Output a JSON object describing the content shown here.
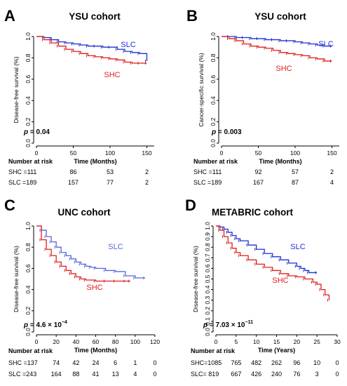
{
  "chart_data": [
    {
      "type": "line",
      "subtype": "kaplan-meier",
      "letter": "A",
      "title": "YSU cohort",
      "xlabel": "Time (Months)",
      "ylabel": "Disease-free survival (%)",
      "xlim": [
        0,
        160
      ],
      "ylim": [
        0,
        1.0
      ],
      "xticks": [
        "0",
        "50",
        "100",
        "150"
      ],
      "yticks": [
        "0.0",
        "0.2",
        "0.4",
        "0.6",
        "0.8",
        "1.0"
      ],
      "annotation": "p = 0.04",
      "series": [
        {
          "name": "SLC",
          "color": "#1f2fd6",
          "x": [
            0,
            10,
            20,
            30,
            40,
            50,
            60,
            70,
            80,
            90,
            100,
            110,
            120,
            130,
            140,
            150
          ],
          "y": [
            1.0,
            0.99,
            0.97,
            0.95,
            0.94,
            0.93,
            0.92,
            0.91,
            0.91,
            0.9,
            0.9,
            0.88,
            0.86,
            0.85,
            0.84,
            0.77
          ]
        },
        {
          "name": "SHC",
          "color": "#e01e1e",
          "x": [
            0,
            10,
            20,
            30,
            40,
            50,
            60,
            70,
            80,
            90,
            100,
            110,
            120,
            130,
            140,
            150
          ],
          "y": [
            1.0,
            0.97,
            0.94,
            0.91,
            0.88,
            0.86,
            0.84,
            0.82,
            0.81,
            0.8,
            0.79,
            0.78,
            0.76,
            0.75,
            0.75,
            0.75
          ]
        }
      ],
      "risk_table": {
        "header": "Number at risk",
        "rows": [
          {
            "label": "SHC =111",
            "values": [
              "86",
              "53",
              "2"
            ]
          },
          {
            "label": "SLC =189",
            "values": [
              "157",
              "77",
              "2"
            ]
          }
        ]
      }
    },
    {
      "type": "line",
      "subtype": "kaplan-meier",
      "letter": "B",
      "title": "YSU cohort",
      "xlabel": "Time (Months)",
      "ylabel": "Cancer-specific survival (%)",
      "xlim": [
        0,
        160
      ],
      "ylim": [
        0,
        1.0
      ],
      "xticks": [
        "0",
        "50",
        "100",
        "150"
      ],
      "yticks": [
        "0.0",
        "0.2",
        "0.4",
        "0.6",
        "0.8",
        "1.0"
      ],
      "annotation": "p = 0.003",
      "series": [
        {
          "name": "SLC",
          "color": "#1f2fd6",
          "x": [
            0,
            10,
            20,
            30,
            40,
            50,
            60,
            70,
            80,
            90,
            100,
            110,
            120,
            130,
            140,
            150
          ],
          "y": [
            1.0,
            1.0,
            0.99,
            0.99,
            0.98,
            0.98,
            0.97,
            0.97,
            0.96,
            0.96,
            0.95,
            0.94,
            0.93,
            0.92,
            0.91,
            0.91
          ]
        },
        {
          "name": "SHC",
          "color": "#e01e1e",
          "x": [
            0,
            10,
            20,
            30,
            40,
            50,
            60,
            70,
            80,
            90,
            100,
            110,
            120,
            130,
            140,
            150
          ],
          "y": [
            1.0,
            0.98,
            0.96,
            0.93,
            0.91,
            0.9,
            0.89,
            0.87,
            0.85,
            0.84,
            0.83,
            0.82,
            0.8,
            0.79,
            0.77,
            0.77
          ]
        }
      ],
      "risk_table": {
        "header": "Number at risk",
        "rows": [
          {
            "label": "SHC =111",
            "values": [
              "92",
              "57",
              "2"
            ]
          },
          {
            "label": "SLC =189",
            "values": [
              "167",
              "87",
              "4"
            ]
          }
        ]
      }
    },
    {
      "type": "line",
      "subtype": "kaplan-meier",
      "letter": "C",
      "title": "UNC cohort",
      "xlabel": "Time (Months)",
      "ylabel": "Disease-free survival (%)",
      "xlim": [
        0,
        120
      ],
      "ylim": [
        0,
        1.0
      ],
      "xticks": [
        "0",
        "20",
        "40",
        "60",
        "80",
        "100",
        "120"
      ],
      "yticks": [
        "0.0",
        "0.2",
        "0.4",
        "0.6",
        "0.8",
        "1.0"
      ],
      "annotation": "p = 4.6 × 10",
      "annotation_exp": "−4",
      "series": [
        {
          "name": "SLC",
          "color": "#5566dd",
          "x": [
            0,
            5,
            10,
            15,
            20,
            25,
            30,
            35,
            40,
            45,
            50,
            55,
            60,
            70,
            80,
            90,
            100,
            110
          ],
          "y": [
            1.0,
            0.96,
            0.9,
            0.85,
            0.8,
            0.75,
            0.72,
            0.69,
            0.66,
            0.64,
            0.62,
            0.61,
            0.6,
            0.58,
            0.57,
            0.53,
            0.51,
            0.51
          ]
        },
        {
          "name": "SHC",
          "color": "#e01e1e",
          "x": [
            0,
            5,
            10,
            15,
            20,
            25,
            30,
            35,
            40,
            45,
            50,
            60,
            70,
            80,
            90,
            95
          ],
          "y": [
            1.0,
            0.87,
            0.78,
            0.72,
            0.66,
            0.62,
            0.58,
            0.55,
            0.52,
            0.5,
            0.49,
            0.48,
            0.48,
            0.48,
            0.48,
            0.48
          ]
        }
      ],
      "risk_table": {
        "header": "Number at risk",
        "rows": [
          {
            "label": "SHC =137",
            "values": [
              "74",
              "42",
              "24",
              "6",
              "1",
              "0"
            ]
          },
          {
            "label": "SLC =243",
            "values": [
              "164",
              "88",
              "41",
              "13",
              "4",
              "0"
            ]
          }
        ]
      }
    },
    {
      "type": "line",
      "subtype": "kaplan-meier",
      "letter": "D",
      "title": "METABRIC cohort",
      "xlabel": "Time (Years)",
      "ylabel": "Disease-free survival (%)",
      "xlim": [
        0,
        30
      ],
      "ylim": [
        0,
        1.0
      ],
      "xticks": [
        "0",
        "5",
        "10",
        "15",
        "20",
        "25",
        "30"
      ],
      "yticks": [
        "0.0",
        "0.1",
        "0.2",
        "0.3",
        "0.4",
        "0.5",
        "0.6",
        "0.7",
        "0.8",
        "0.9",
        "1.0"
      ],
      "annotation": "p = 7.03 × 10",
      "annotation_exp": "−11",
      "series": [
        {
          "name": "SLC",
          "color": "#1f2fd6",
          "x": [
            0,
            1,
            2,
            3,
            4,
            5,
            6,
            8,
            10,
            12,
            14,
            16,
            18,
            20,
            21,
            22,
            23,
            25
          ],
          "y": [
            1.0,
            0.99,
            0.97,
            0.94,
            0.91,
            0.88,
            0.86,
            0.82,
            0.78,
            0.74,
            0.71,
            0.68,
            0.65,
            0.62,
            0.6,
            0.58,
            0.56,
            0.56
          ]
        },
        {
          "name": "SHC",
          "color": "#e01e1e",
          "x": [
            0,
            1,
            2,
            3,
            4,
            5,
            6,
            8,
            10,
            12,
            14,
            16,
            18,
            20,
            22,
            24,
            25,
            26,
            27,
            28
          ],
          "y": [
            1.0,
            0.96,
            0.9,
            0.84,
            0.79,
            0.75,
            0.72,
            0.68,
            0.64,
            0.61,
            0.58,
            0.55,
            0.53,
            0.52,
            0.5,
            0.47,
            0.45,
            0.4,
            0.35,
            0.3
          ]
        }
      ],
      "risk_table": {
        "header": "Number at risk",
        "rows": [
          {
            "label": "SHC=1085",
            "values": [
              "765",
              "482",
              "262",
              "96",
              "10",
              "0"
            ]
          },
          {
            "label": "SLC= 819",
            "values": [
              "667",
              "426",
              "240",
              "76",
              "3",
              "0"
            ]
          }
        ]
      }
    }
  ]
}
